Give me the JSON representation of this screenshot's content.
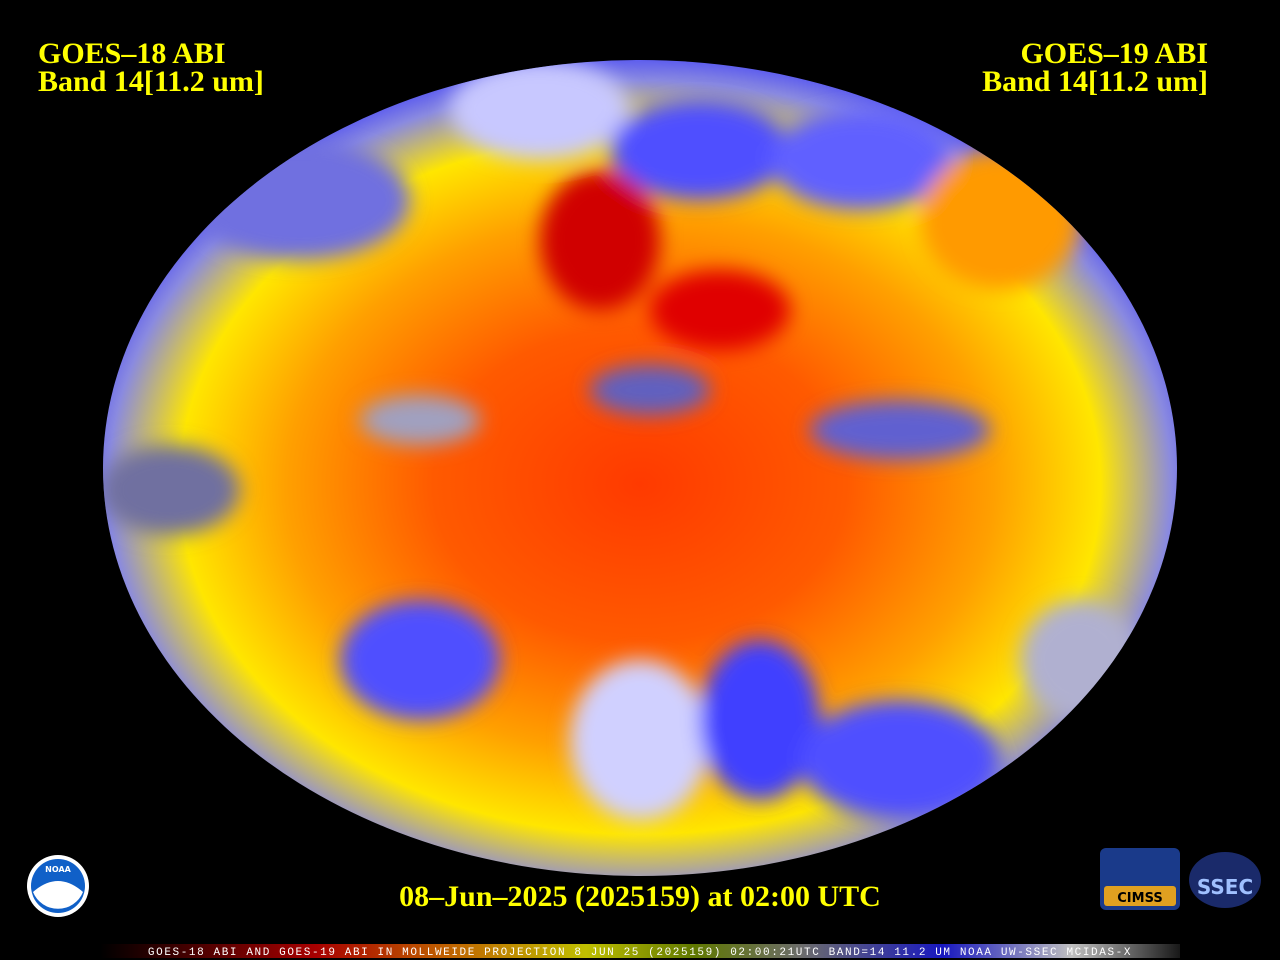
{
  "title_left": {
    "line1": "GOES–18 ABI",
    "line2": "Band 14[11.2 um]"
  },
  "title_right": {
    "line1": "GOES–19 ABI",
    "line2": "Band 14[11.2 um]"
  },
  "timestamp": "08–Jun–2025 (2025159) at 02:00 UTC",
  "caption": "GOES-18 ABI AND GOES-19 ABI IN MOLLWEIDE PROJECTION 8 JUN 25 (2025159) 02:00:21UTC BAND=14 11.2 UM NOAA UW-SSEC MCIDAS-X",
  "logos": {
    "noaa": "NOAA",
    "cimss": "CIMSS",
    "ssec": "SSEC"
  }
}
